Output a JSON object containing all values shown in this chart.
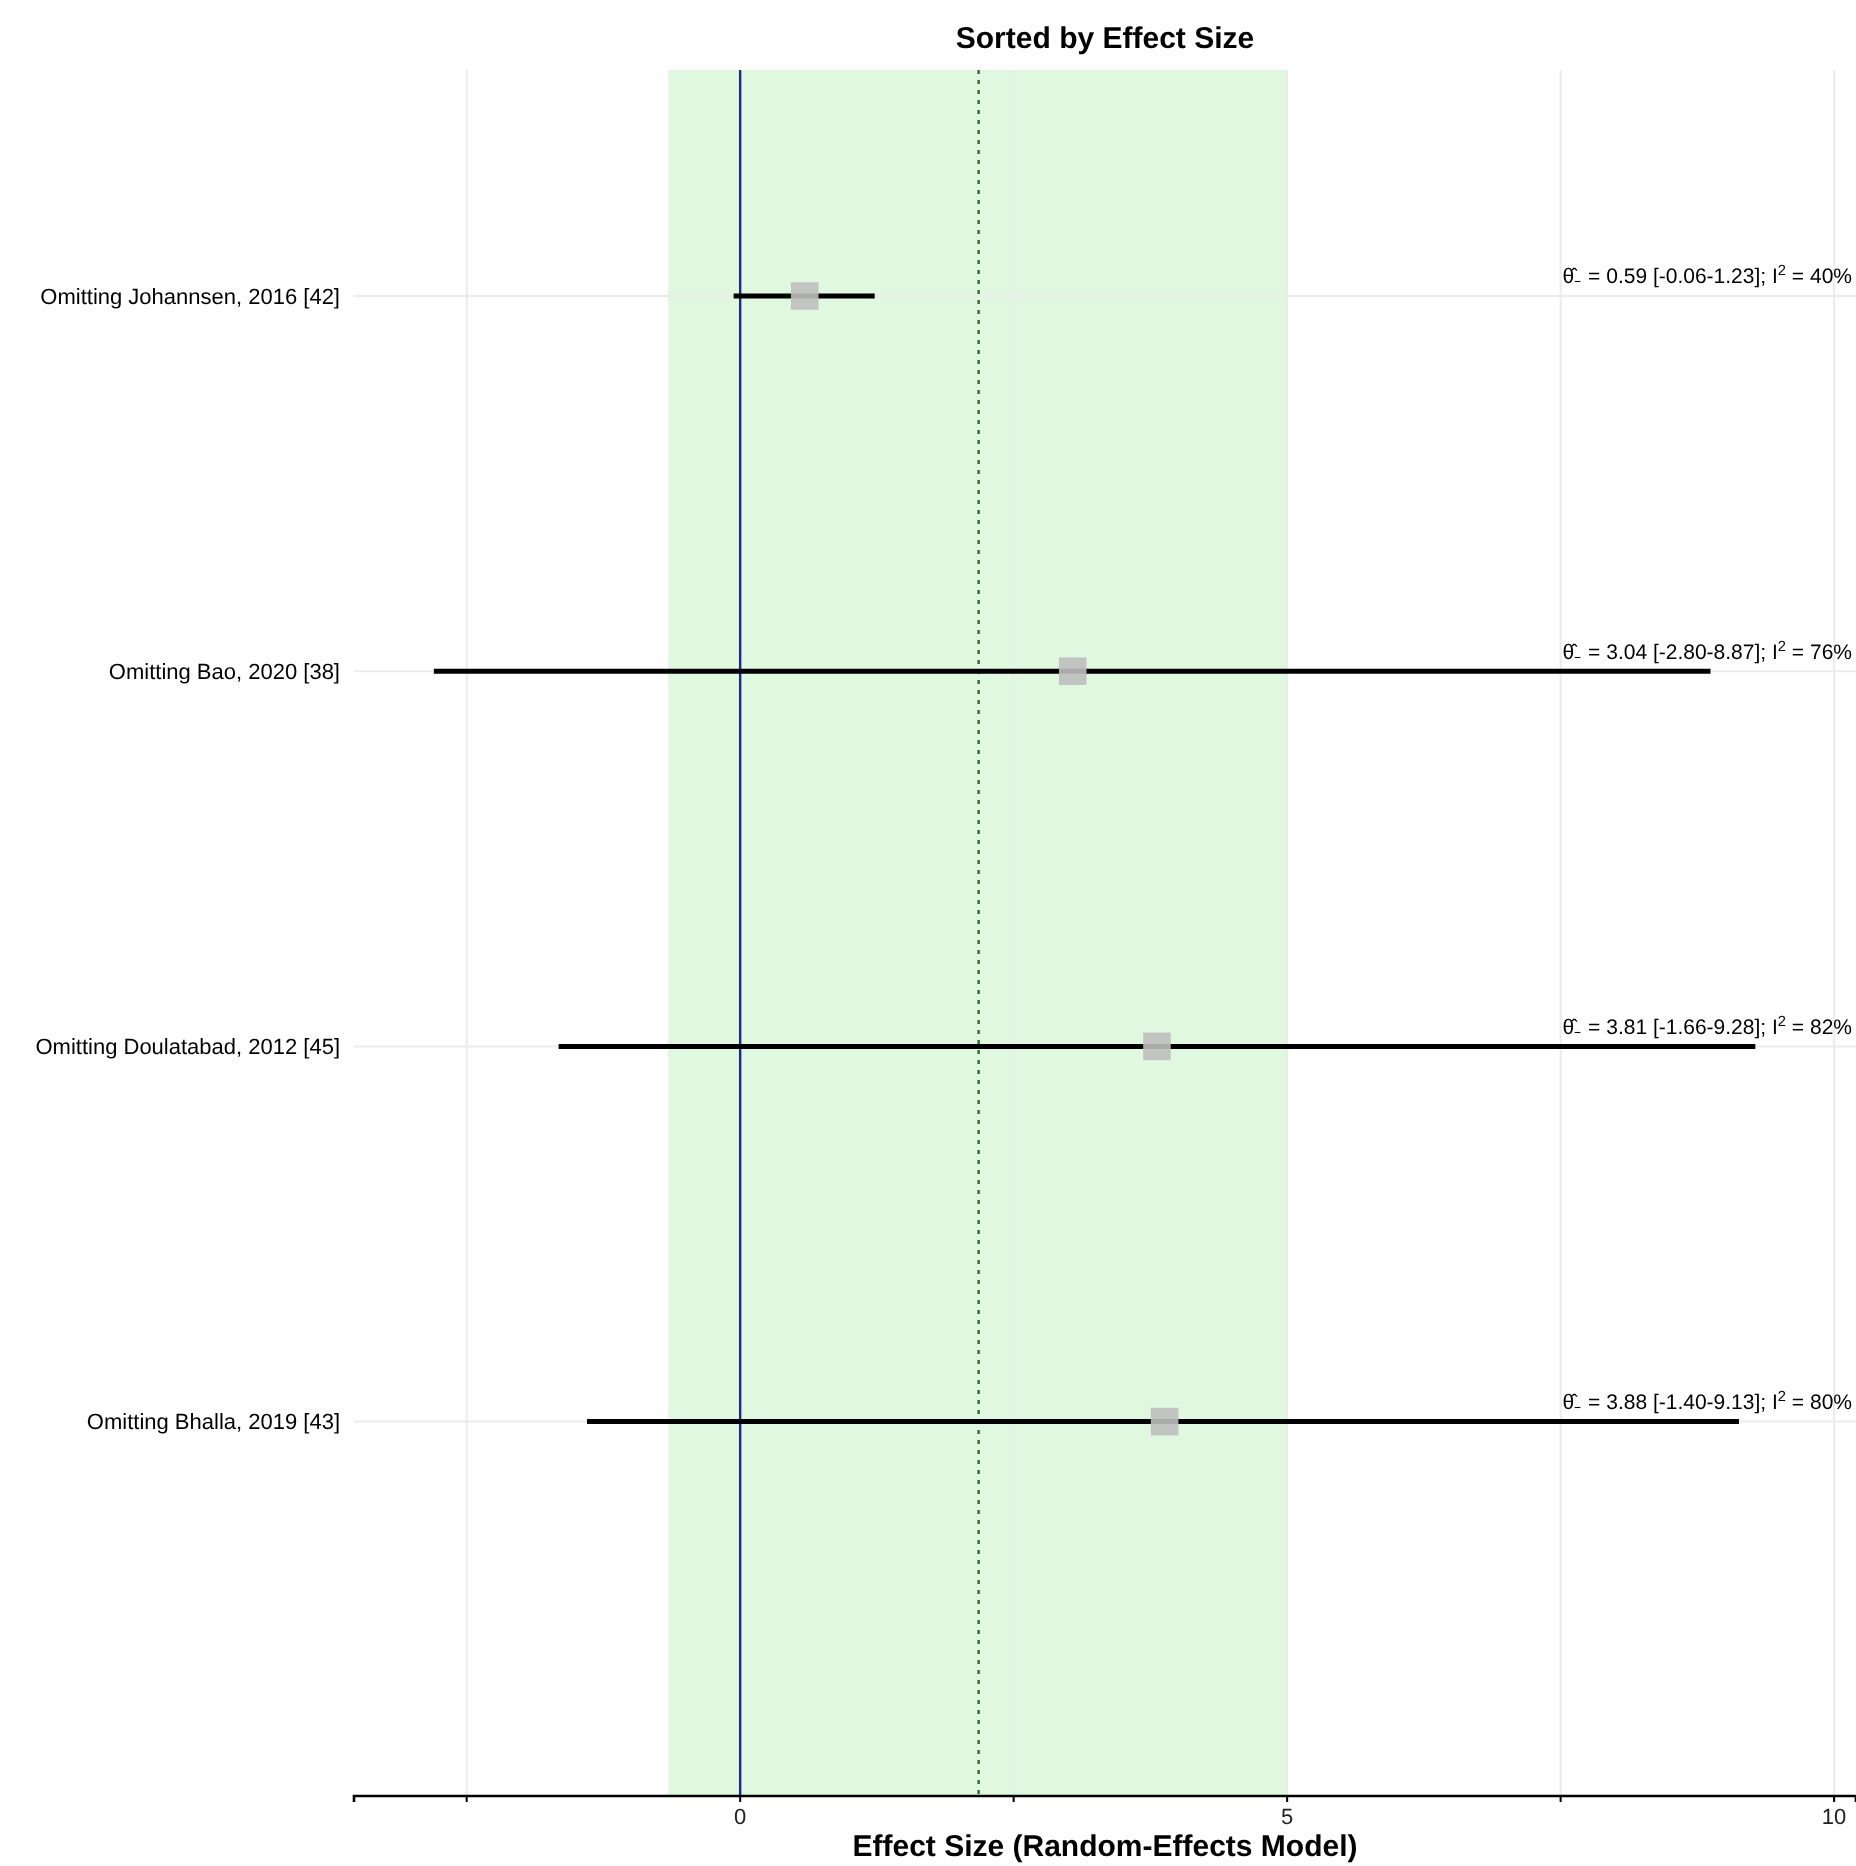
{
  "chart_data": {
    "type": "scatter",
    "orientation": "horizontal",
    "title": "Sorted by Effect Size",
    "xlabel": "Effect Size (Random-Effects Model)",
    "categories": [
      "Omitting Johannsen, 2016 [42]",
      "Omitting Bao, 2020 [38]",
      "Omitting Doulatabad, 2012 [45]",
      "Omitting Bhalla, 2019 [43]"
    ],
    "values": [
      0.59,
      3.04,
      3.81,
      3.88
    ],
    "errors": [
      [
        -0.06,
        1.23
      ],
      [
        -2.8,
        8.87
      ],
      [
        -1.66,
        9.28
      ],
      [
        -1.4,
        9.13
      ]
    ],
    "annotations": [
      "θ̂₋ = 0.59 [-0.06-1.23]; I$^{2}$ = 40%",
      "θ̂₋ = 3.04 [-2.80-8.87]; I$^{2}$ = 76%",
      "θ̂₋ = 3.81 [-1.66-9.28]; I$^{2}$ = 82%",
      "θ̂₋ = 3.88 [-1.40-9.13]; I$^{2}$ = 80%"
    ],
    "color": "#bebebe",
    "marker": "square",
    "xlim": [
      -3.53,
      10.2
    ],
    "xticks": [
      {
        "value": -2.5,
        "label": null
      },
      0,
      {
        "value": 2.5,
        "label": null
      },
      5,
      {
        "value": 7.5,
        "label": null
      },
      10
    ],
    "ref_lines": [
      {
        "axis": "x",
        "value": 0,
        "label": null,
        "color": "#1f2a8c",
        "line_style": "solid"
      },
      {
        "axis": "x",
        "value": 2.18,
        "label": null,
        "color": "#2e6b2e",
        "line_style": "dotted"
      }
    ],
    "bands": [
      {
        "axis": "x",
        "from": -0.66,
        "to": 5.0,
        "label": null,
        "color": "#dff8df"
      }
    ],
    "grid": true
  }
}
